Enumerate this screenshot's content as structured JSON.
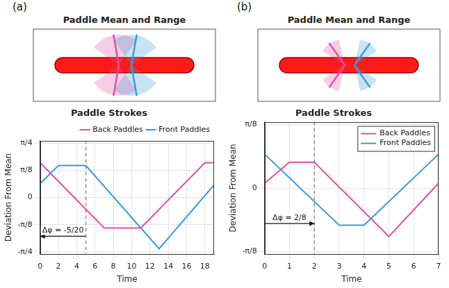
{
  "panels": [
    {
      "label": "(a)",
      "diagram_title": "Paddle Mean and Range"
    },
    {
      "label": "(b)",
      "diagram_title": "Paddle Mean and Range"
    }
  ],
  "chart_data": [
    {
      "type": "line",
      "title": "Paddle Strokes",
      "x_label": "Time",
      "y_label": "Deviation From Mean",
      "xlim": [
        0,
        19
      ],
      "xticks": [
        0,
        2,
        4,
        6,
        8,
        10,
        12,
        14,
        16,
        18
      ],
      "ylim": [
        -0.82,
        0.82
      ],
      "yticks": [
        {
          "value": -0.7854,
          "label": "-π/4"
        },
        {
          "value": -0.3927,
          "label": "-π/8"
        },
        0,
        {
          "value": 0.3927,
          "label": "π/8"
        },
        {
          "value": 0.7854,
          "label": "π/4"
        }
      ],
      "grid": true,
      "legend": "top",
      "series": [
        {
          "name": "Back Paddles",
          "color": "#e0509c",
          "x": [
            0,
            7,
            11,
            18,
            19
          ],
          "values": [
            0.5,
            -0.44,
            -0.44,
            0.5,
            0.5
          ],
          "line_style": "solid",
          "marker": "none"
        },
        {
          "name": "Front Paddles",
          "color": "#3a9ad9",
          "x": [
            0,
            2,
            5,
            13,
            19
          ],
          "values": [
            0.2,
            0.46,
            0.46,
            -0.74,
            0.18
          ],
          "line_style": "solid",
          "marker": "none"
        }
      ],
      "annotations": [
        {
          "text": "Δφ = -5/20",
          "x": 5,
          "y": -0.56,
          "arrow": [
            5,
            0
          ]
        }
      ]
    },
    {
      "type": "line",
      "title": "Paddle Strokes",
      "x_label": "Time",
      "y_label": "Deviation From Mean",
      "xlim": [
        0,
        7
      ],
      "xticks": [
        0,
        1,
        2,
        3,
        4,
        5,
        6,
        7
      ],
      "ylim": [
        -0.41,
        0.41
      ],
      "yticks": [
        {
          "value": -0.3927,
          "label": "-π/8"
        },
        0,
        {
          "value": 0.3927,
          "label": "π/8"
        }
      ],
      "grid": true,
      "legend": "upper right",
      "series": [
        {
          "name": "Back Paddles",
          "color": "#e0509c",
          "x": [
            0,
            1,
            2,
            5,
            7
          ],
          "values": [
            0.03,
            0.16,
            0.16,
            -0.3,
            0.03
          ],
          "line_style": "solid",
          "marker": "none"
        },
        {
          "name": "Front Paddles",
          "color": "#3a9ad9",
          "x": [
            0,
            3,
            4,
            7
          ],
          "values": [
            0.21,
            -0.23,
            -0.23,
            0.21
          ],
          "line_style": "solid",
          "marker": "none"
        }
      ],
      "annotations": [
        {
          "text": "Δφ = 2/8",
          "x": 2,
          "y": -0.22,
          "arrow": [
            0,
            2
          ]
        }
      ]
    }
  ]
}
